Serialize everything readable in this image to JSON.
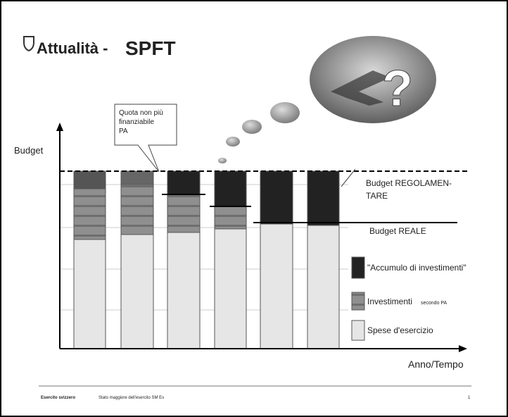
{
  "header": {
    "title_prefix": "Attualità -",
    "title_main": "SPFT"
  },
  "image_text": "?",
  "callout": {
    "lines": [
      "Quota non più",
      "finanziabile",
      "PA"
    ]
  },
  "axes": {
    "y_label": "Budget",
    "x_label": "Anno/Tempo"
  },
  "budget_lines": {
    "regulatory": [
      "Budget REGOLAMEN-",
      "TARE"
    ],
    "real": "Budget REALE"
  },
  "legend": {
    "accumulation": "\"Accumulo di investimenti\"",
    "investments": "Investimenti",
    "investments_note": "secondo PA",
    "operating": "Spese d'esercizio"
  },
  "footer": {
    "org": "Esercito svizzero",
    "unit": "Stato maggiore dell'esercito SM Es",
    "page": "1"
  }
}
